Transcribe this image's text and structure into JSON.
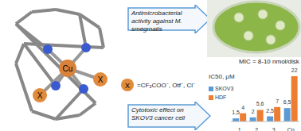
{
  "molecule": {
    "center": "Cu",
    "ligand": "X"
  },
  "ligand_legend": {
    "symbol": "X",
    "text": "=CF₃COO⁻, Otf⁻, Cl⁻"
  },
  "boxes": [
    {
      "text": "Antimicrobacterial activity against M. smegmatis"
    },
    {
      "text": "Cytotoxic effect on SKOV3 cancer cell"
    }
  ],
  "antibacterial": {
    "text": "MIC = 8-10 nmol/disk"
  },
  "chart_data": {
    "type": "bar",
    "title": "IC50, μM",
    "categories": [
      "1",
      "2",
      "3",
      "Cp"
    ],
    "series": [
      {
        "name": "SKOV3",
        "color": "#5b9bd5",
        "values": [
          1.5,
          2,
          2.5,
          6.5
        ],
        "value_labels": [
          "1,5",
          "2",
          "2,5",
          "6,5"
        ]
      },
      {
        "name": "HDF",
        "color": "#ed7d31",
        "values": [
          4,
          5.6,
          7,
          22
        ],
        "value_labels": [
          "4",
          "5,6",
          "7",
          "22"
        ]
      }
    ],
    "ylim": [
      0,
      22
    ],
    "data_labels": true,
    "tick_labels": "x",
    "grid": false
  }
}
